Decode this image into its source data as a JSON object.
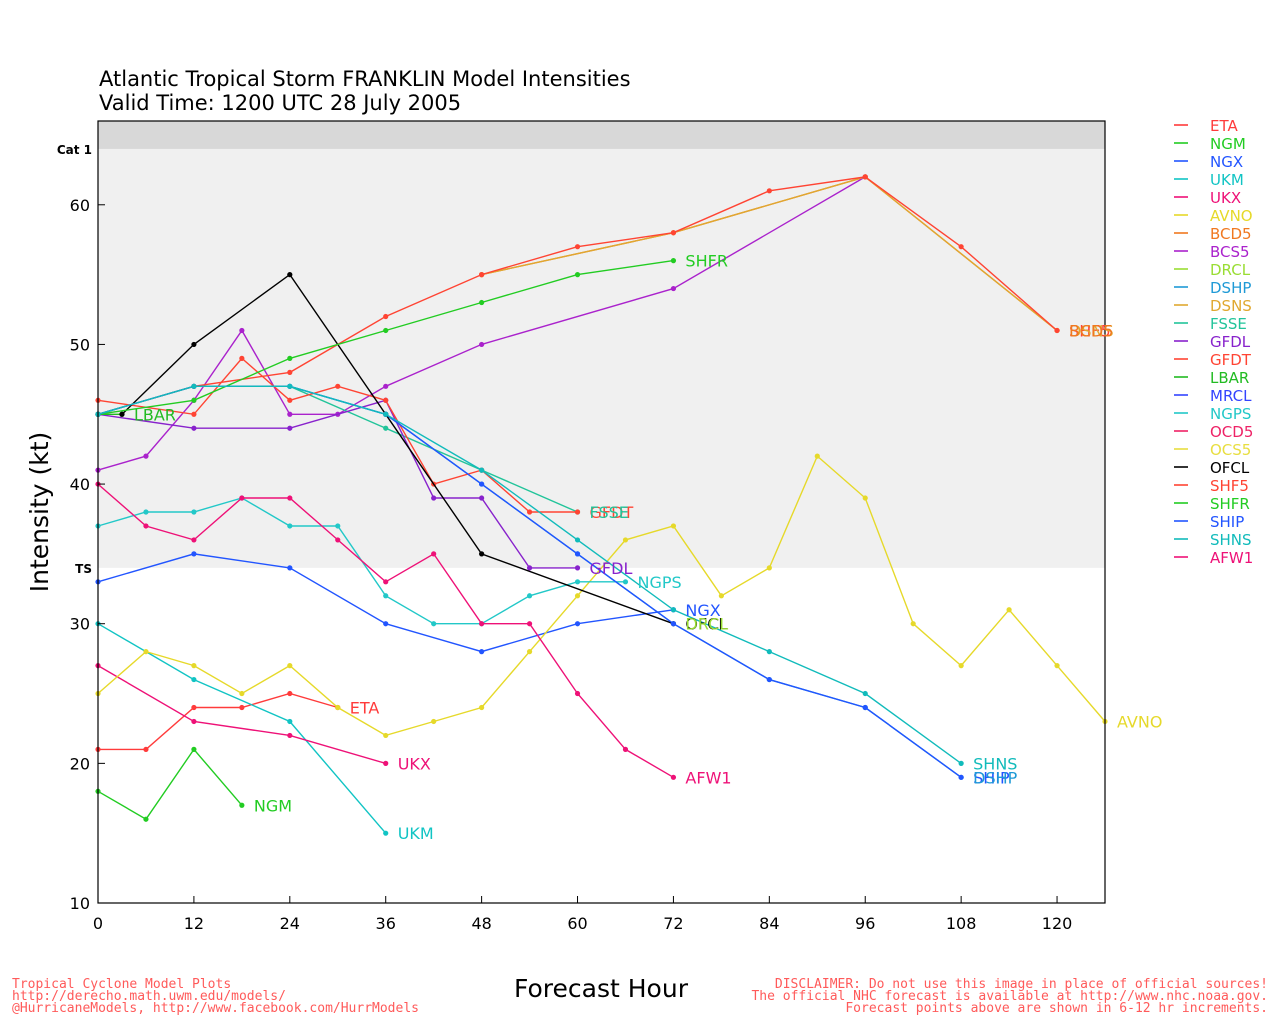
{
  "chart_data": {
    "type": "line",
    "title": "Atlantic Tropical Storm FRANKLIN Model Intensities",
    "subtitle": "Valid Time: 1200 UTC 28 July 2005",
    "xlabel": "Forecast Hour",
    "ylabel": "Intensity (kt)",
    "xlim": [
      0,
      126
    ],
    "ylim": [
      10,
      66
    ],
    "xticks": [
      0,
      12,
      24,
      36,
      48,
      60,
      72,
      84,
      96,
      108,
      120
    ],
    "yticks": [
      10,
      20,
      30,
      40,
      50,
      60
    ],
    "bands": [
      {
        "label": "TS",
        "from": 34,
        "to": 64,
        "color": "#f0f0f0"
      },
      {
        "label": "Cat 1",
        "from": 64,
        "to": 66,
        "color": "#d8d8d8"
      }
    ],
    "grid": false,
    "legend_position": "right",
    "series": [
      {
        "name": "ETA",
        "color": "#ff3b3b",
        "points": [
          [
            0,
            21
          ],
          [
            6,
            21
          ],
          [
            12,
            24
          ],
          [
            18,
            24
          ],
          [
            24,
            25
          ],
          [
            30,
            24
          ]
        ],
        "label": "ETA"
      },
      {
        "name": "NGM",
        "color": "#22cc22",
        "points": [
          [
            0,
            18
          ],
          [
            6,
            16
          ],
          [
            12,
            21
          ],
          [
            18,
            17
          ]
        ],
        "label": "NGM"
      },
      {
        "name": "NGX",
        "color": "#2255ff",
        "points": [
          [
            0,
            33
          ],
          [
            12,
            35
          ],
          [
            24,
            34
          ],
          [
            36,
            30
          ],
          [
            48,
            28
          ],
          [
            60,
            30
          ],
          [
            72,
            31
          ]
        ],
        "label": "NGX"
      },
      {
        "name": "UKM",
        "color": "#11c4c4",
        "points": [
          [
            0,
            30
          ],
          [
            12,
            26
          ],
          [
            24,
            23
          ],
          [
            36,
            15
          ]
        ],
        "label": "UKM"
      },
      {
        "name": "UKX",
        "color": "#ee1177",
        "points": [
          [
            0,
            27
          ],
          [
            12,
            23
          ],
          [
            24,
            22
          ],
          [
            36,
            20
          ]
        ],
        "label": "UKX"
      },
      {
        "name": "AVNO",
        "color": "#e6d92a",
        "points": [
          [
            0,
            25
          ],
          [
            6,
            28
          ],
          [
            12,
            27
          ],
          [
            18,
            25
          ],
          [
            24,
            27
          ],
          [
            30,
            24
          ],
          [
            36,
            22
          ],
          [
            42,
            23
          ],
          [
            48,
            24
          ],
          [
            54,
            28
          ],
          [
            60,
            32
          ],
          [
            66,
            36
          ],
          [
            72,
            37
          ],
          [
            78,
            32
          ],
          [
            84,
            34
          ],
          [
            90,
            42
          ],
          [
            96,
            39
          ],
          [
            102,
            30
          ],
          [
            108,
            27
          ],
          [
            114,
            31
          ],
          [
            120,
            27
          ],
          [
            126,
            23
          ]
        ],
        "label": "AVNO"
      },
      {
        "name": "BCD5",
        "color": "#f07820",
        "points": [
          [
            48,
            55
          ],
          [
            72,
            58
          ],
          [
            96,
            62
          ],
          [
            120,
            51
          ]
        ],
        "label": ""
      },
      {
        "name": "BCS5",
        "color": "#aa22cc",
        "points": [
          [
            0,
            41
          ],
          [
            6,
            42
          ],
          [
            12,
            46
          ],
          [
            18,
            51
          ],
          [
            24,
            45
          ],
          [
            30,
            45
          ],
          [
            36,
            47
          ],
          [
            48,
            50
          ],
          [
            72,
            54
          ],
          [
            96,
            62
          ]
        ],
        "label": ""
      },
      {
        "name": "DRCL",
        "color": "#99dd33",
        "points": [],
        "label": ""
      },
      {
        "name": "DSHP",
        "color": "#1f9ad6",
        "points": [
          [
            0,
            45
          ],
          [
            12,
            47
          ],
          [
            24,
            47
          ],
          [
            36,
            45
          ],
          [
            48,
            40
          ],
          [
            60,
            35
          ],
          [
            72,
            30
          ],
          [
            84,
            26
          ],
          [
            96,
            24
          ],
          [
            108,
            19
          ]
        ],
        "label": ""
      },
      {
        "name": "DSNS",
        "color": "#e0a830",
        "points": [
          [
            48,
            55
          ],
          [
            72,
            58
          ],
          [
            96,
            62
          ],
          [
            120,
            51
          ]
        ],
        "label": ""
      },
      {
        "name": "FSSE",
        "color": "#22c49a",
        "points": [
          [
            0,
            45
          ],
          [
            12,
            47
          ],
          [
            24,
            47
          ],
          [
            36,
            44
          ],
          [
            48,
            41
          ],
          [
            60,
            38
          ]
        ],
        "label": ""
      },
      {
        "name": "GFDL",
        "color": "#8822cc",
        "points": [
          [
            0,
            45
          ],
          [
            12,
            44
          ],
          [
            24,
            44
          ],
          [
            36,
            46
          ],
          [
            42,
            39
          ],
          [
            48,
            39
          ],
          [
            54,
            34
          ],
          [
            60,
            34
          ]
        ],
        "label": "GFDL"
      },
      {
        "name": "GFDT",
        "color": "#ff4433",
        "points": [
          [
            0,
            46
          ],
          [
            12,
            45
          ],
          [
            18,
            49
          ],
          [
            24,
            46
          ],
          [
            30,
            47
          ],
          [
            36,
            46
          ],
          [
            42,
            40
          ],
          [
            48,
            41
          ],
          [
            54,
            38
          ],
          [
            60,
            38
          ]
        ],
        "label": "GFDT"
      },
      {
        "name": "LBAR",
        "color": "#22bb22",
        "points": [
          [
            0,
            45
          ],
          [
            3,
            45
          ]
        ],
        "label": "LBAR"
      },
      {
        "name": "MRCL",
        "color": "#3344ff",
        "points": [],
        "label": ""
      },
      {
        "name": "NGPS",
        "color": "#22c8c8",
        "points": [
          [
            0,
            37
          ],
          [
            6,
            38
          ],
          [
            12,
            38
          ],
          [
            18,
            39
          ],
          [
            24,
            37
          ],
          [
            30,
            37
          ],
          [
            36,
            32
          ],
          [
            42,
            30
          ],
          [
            48,
            30
          ],
          [
            54,
            32
          ],
          [
            60,
            33
          ],
          [
            66,
            33
          ]
        ],
        "label": "NGPS"
      },
      {
        "name": "OCD5",
        "color": "#ee2266",
        "points": [],
        "label": ""
      },
      {
        "name": "OCS5",
        "color": "#e8de40",
        "points": [],
        "label": ""
      },
      {
        "name": "OFCL",
        "color": "#000000",
        "points": [
          [
            3,
            45
          ],
          [
            12,
            50
          ],
          [
            24,
            55
          ],
          [
            36,
            45
          ],
          [
            48,
            35
          ],
          [
            72,
            30
          ]
        ],
        "label": "OFCL"
      },
      {
        "name": "SHF5",
        "color": "#ff4433",
        "points": [
          [
            0,
            45
          ],
          [
            12,
            47
          ],
          [
            24,
            48
          ],
          [
            36,
            52
          ],
          [
            48,
            55
          ],
          [
            60,
            57
          ],
          [
            72,
            58
          ],
          [
            84,
            61
          ],
          [
            96,
            62
          ],
          [
            108,
            57
          ],
          [
            120,
            51
          ]
        ],
        "label": "SHF5"
      },
      {
        "name": "SHFR",
        "color": "#22cc22",
        "points": [
          [
            0,
            45
          ],
          [
            12,
            46
          ],
          [
            24,
            49
          ],
          [
            36,
            51
          ],
          [
            48,
            53
          ],
          [
            60,
            55
          ],
          [
            72,
            56
          ]
        ],
        "label": "SHFR"
      },
      {
        "name": "SHIP",
        "color": "#2255ff",
        "points": [
          [
            0,
            45
          ],
          [
            12,
            47
          ],
          [
            24,
            47
          ],
          [
            36,
            45
          ],
          [
            48,
            40
          ],
          [
            60,
            35
          ],
          [
            72,
            30
          ],
          [
            84,
            26
          ],
          [
            96,
            24
          ],
          [
            108,
            19
          ]
        ],
        "label": "SHIP"
      },
      {
        "name": "SHNS",
        "color": "#11bbbb",
        "points": [
          [
            0,
            45
          ],
          [
            12,
            47
          ],
          [
            24,
            47
          ],
          [
            36,
            45
          ],
          [
            48,
            41
          ],
          [
            60,
            36
          ],
          [
            72,
            31
          ],
          [
            84,
            28
          ],
          [
            96,
            25
          ],
          [
            108,
            20
          ]
        ],
        "label": "SHNS"
      },
      {
        "name": "AFW1",
        "color": "#ee1177",
        "points": [
          [
            0,
            40
          ],
          [
            6,
            37
          ],
          [
            12,
            36
          ],
          [
            18,
            39
          ],
          [
            24,
            39
          ],
          [
            30,
            36
          ],
          [
            36,
            33
          ],
          [
            42,
            35
          ],
          [
            48,
            30
          ],
          [
            54,
            30
          ],
          [
            60,
            25
          ],
          [
            66,
            21
          ],
          [
            72,
            19
          ]
        ],
        "label": "AFW1"
      }
    ]
  },
  "extra_end_labels": [
    {
      "text": "DSNS",
      "x": 120,
      "y": 51,
      "color": "#e0a830"
    },
    {
      "text": "BCD5",
      "x": 120,
      "y": 51,
      "color": "#f07820"
    },
    {
      "text": "FSSE",
      "x": 60,
      "y": 38,
      "color": "#22c49a"
    },
    {
      "text": "DRCL",
      "x": 72,
      "y": 30,
      "color": "#99dd33"
    },
    {
      "text": "DSHP",
      "x": 108,
      "y": 19,
      "color": "#1f9ad6"
    }
  ],
  "footer_left": [
    "Tropical Cyclone Model Plots",
    "http://derecho.math.uwm.edu/models/",
    "@HurricaneModels, http://www.facebook.com/HurrModels"
  ],
  "footer_right": [
    "DISCLAIMER: Do not use this image in place of official sources!",
    "The official NHC forecast is available at http://www.nhc.noaa.gov.",
    "Forecast points above are shown in 6-12 hr increments."
  ]
}
